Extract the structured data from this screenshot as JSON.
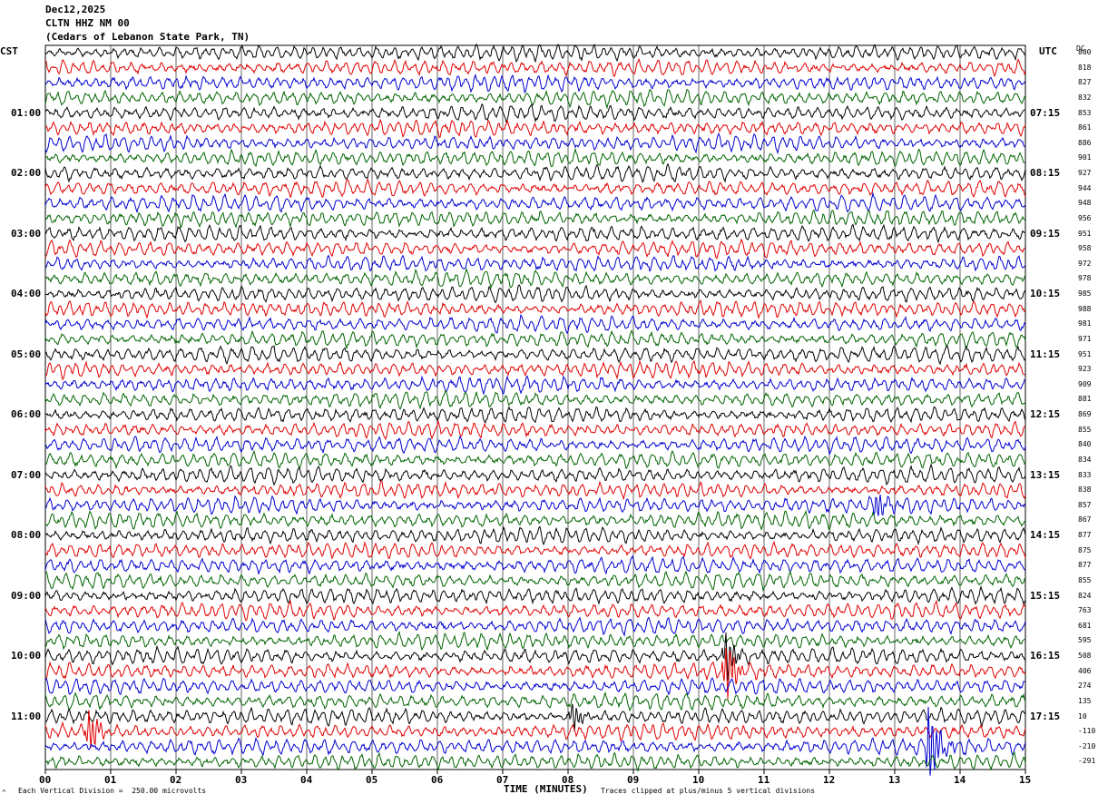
{
  "header": {
    "date": "Dec12,2025",
    "station": "CLTN HHZ NM 00",
    "location": "(Cedars of Lebanon State Park, TN)"
  },
  "left_zone": "CST",
  "right_zone": "UTC",
  "dc_header": "DC",
  "footer": {
    "scale_note": "Each Vertical Division =  250.00 microvolts",
    "clip_note": "Traces clipped at plus/minus 5 vertical divisions",
    "mark": "^"
  },
  "colors": {
    "trace_cycle": [
      "#000000",
      "#e00000",
      "#0000d0",
      "#006400"
    ],
    "grid": "#000000",
    "background": "#ffffff"
  },
  "chart_data": {
    "type": "line",
    "title": "CLTN HHZ NM 00",
    "xlabel": "TIME (MINUTES)",
    "ylabel": "",
    "x_ticks": [
      "00",
      "01",
      "02",
      "03",
      "04",
      "05",
      "06",
      "07",
      "08",
      "09",
      "10",
      "11",
      "12",
      "13",
      "14",
      "15"
    ],
    "xlim": [
      0,
      15
    ],
    "rows_per_hour": 4,
    "minutes_per_row": 15,
    "traces_count": 48,
    "left_hour_labels": [
      "01:00",
      "02:00",
      "03:00",
      "04:00",
      "05:00",
      "06:00",
      "07:00",
      "08:00",
      "09:00",
      "10:00",
      "11:00"
    ],
    "right_hour_labels": [
      "07:15",
      "08:15",
      "09:15",
      "10:15",
      "11:15",
      "12:15",
      "13:15",
      "14:15",
      "15:15",
      "16:15",
      "17:15"
    ],
    "dc_offsets": [
      800,
      818,
      827,
      832,
      853,
      861,
      886,
      901,
      927,
      944,
      948,
      956,
      951,
      958,
      972,
      978,
      985,
      988,
      981,
      971,
      951,
      923,
      909,
      881,
      869,
      855,
      840,
      834,
      833,
      838,
      857,
      867,
      877,
      875,
      877,
      855,
      824,
      763,
      681,
      595,
      508,
      406,
      274,
      135,
      10,
      -110,
      -210,
      -291
    ],
    "events": [
      {
        "row": 40,
        "minute": 10.4,
        "amplitude": 2.6,
        "color_index": 0
      },
      {
        "row": 41,
        "minute": 10.4,
        "amplitude": 3.2,
        "color_index": 1
      },
      {
        "row": 45,
        "minute": 0.65,
        "amplitude": 2.4,
        "color_index": 1
      },
      {
        "row": 46,
        "minute": 13.5,
        "amplitude": 4.8,
        "color_index": 2
      },
      {
        "row": 44,
        "minute": 8.05,
        "amplitude": 1.6,
        "color_index": 0
      },
      {
        "row": 30,
        "minute": 12.7,
        "amplitude": 1.5,
        "color_index": 2
      }
    ]
  }
}
